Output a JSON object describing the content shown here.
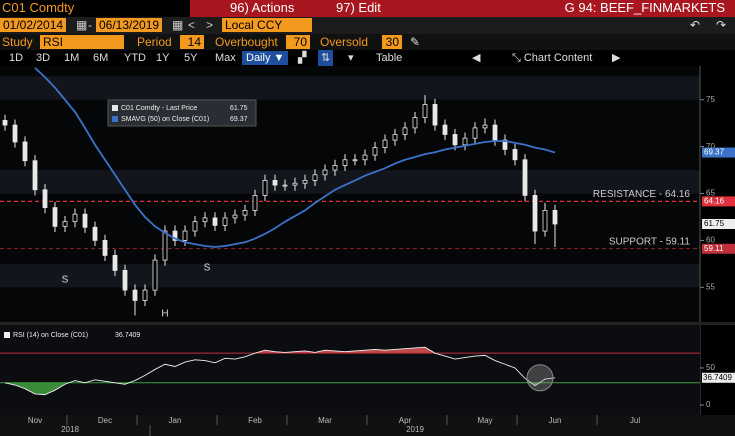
{
  "header": {
    "ticker": "C01 Comdty",
    "actions": "96) Actions",
    "edit": "97) Edit",
    "page": "G 94: BEEF_FINMARKETS"
  },
  "controls": {
    "start": "01/02/2014",
    "end": "06/13/2019",
    "currency": "Local CCY",
    "study_label": "Study",
    "study": "RSI",
    "period_label": "Period",
    "period": 14,
    "overbought_label": "Overbought",
    "overbought": 70,
    "oversold_label": "Oversold",
    "oversold": 30
  },
  "toolbar": {
    "periods": [
      "1D",
      "3D",
      "1M",
      "6M",
      "YTD",
      "1Y",
      "5Y",
      "Max"
    ],
    "frequency": "Daily",
    "table": "Table",
    "chart_content": "Chart Content"
  },
  "chart_data": [
    {
      "type": "candlestick",
      "name": "C01 Comdty - Last Price",
      "color": "#e8e8e8",
      "open": [
        72.8,
        72.3,
        70.5,
        68.5,
        65.4,
        63.5,
        61.5,
        62.0,
        62.8,
        61.4,
        60.0,
        58.4,
        56.8,
        54.7,
        53.6,
        54.7,
        57.9,
        61.0,
        60.0,
        61.0,
        62.0,
        62.4,
        61.6,
        62.4,
        62.7,
        63.2,
        64.8,
        66.4,
        65.9,
        65.9,
        66.1,
        66.4,
        67.0,
        67.5,
        68.0,
        68.6,
        68.6,
        69.1,
        69.9,
        70.7,
        71.3,
        72.0,
        73.1,
        74.5,
        72.3,
        71.3,
        70.2,
        70.9,
        72.0,
        72.3,
        70.7,
        69.7,
        68.6,
        64.8,
        61.0,
        63.2
      ],
      "high": [
        73.4,
        72.9,
        71.1,
        69.1,
        66.0,
        64.1,
        62.6,
        63.4,
        63.4,
        62.0,
        60.6,
        59.0,
        57.4,
        55.3,
        55.3,
        58.5,
        61.6,
        61.6,
        61.6,
        62.6,
        63.0,
        63.0,
        63.0,
        63.3,
        63.8,
        65.4,
        67.0,
        67.0,
        66.5,
        66.7,
        67.0,
        67.6,
        68.1,
        68.6,
        69.2,
        69.2,
        69.7,
        70.5,
        71.3,
        71.9,
        72.6,
        73.7,
        75.5,
        75.1,
        72.9,
        71.9,
        71.5,
        72.6,
        73.0,
        72.9,
        71.3,
        70.3,
        69.2,
        65.4,
        64.0,
        63.8
      ],
      "low": [
        71.7,
        69.9,
        67.9,
        64.8,
        62.9,
        60.9,
        60.9,
        61.4,
        60.8,
        59.4,
        57.8,
        56.2,
        54.1,
        52.0,
        53.0,
        54.1,
        57.3,
        59.4,
        59.4,
        60.4,
        61.4,
        61.0,
        61.0,
        61.8,
        62.1,
        62.6,
        64.2,
        65.3,
        65.3,
        65.3,
        65.5,
        65.8,
        66.4,
        66.9,
        67.4,
        68.0,
        68.0,
        68.5,
        69.3,
        70.1,
        70.7,
        71.4,
        72.5,
        71.7,
        70.7,
        69.6,
        69.6,
        70.3,
        71.4,
        70.1,
        69.1,
        68.0,
        64.2,
        59.6,
        60.4,
        59.3
      ],
      "close": [
        72.3,
        70.5,
        68.5,
        65.4,
        63.5,
        61.5,
        62.0,
        62.8,
        61.4,
        60.0,
        58.4,
        56.8,
        54.7,
        53.6,
        54.7,
        57.9,
        61.0,
        60.0,
        61.0,
        62.0,
        62.4,
        61.6,
        62.4,
        62.7,
        63.2,
        64.8,
        66.4,
        65.9,
        65.9,
        66.1,
        66.4,
        67.0,
        67.5,
        68.0,
        68.6,
        68.6,
        69.1,
        69.9,
        70.7,
        71.3,
        72.0,
        73.1,
        74.5,
        72.3,
        71.3,
        70.2,
        70.9,
        72.0,
        72.3,
        70.7,
        69.7,
        68.6,
        64.8,
        61.0,
        63.2,
        61.75
      ],
      "overlays": [
        {
          "name": "SMAVG (50)  on Close (C01)",
          "color": "#3b73c8",
          "values": [
            null,
            null,
            null,
            78.4,
            77.4,
            76.3,
            75.0,
            73.7,
            72.0,
            70.2,
            68.6,
            67.0,
            65.4,
            63.8,
            62.5,
            61.5,
            60.8,
            60.2,
            59.8,
            59.6,
            59.4,
            59.3,
            59.4,
            59.6,
            59.8,
            60.2,
            60.7,
            61.3,
            62.0,
            62.6,
            63.2,
            64.0,
            64.7,
            65.4,
            65.9,
            66.4,
            66.9,
            67.3,
            67.7,
            68.2,
            68.6,
            68.9,
            69.2,
            69.4,
            69.7,
            69.9,
            70.1,
            70.3,
            70.5,
            70.6,
            70.6,
            70.4,
            70.2,
            69.9,
            69.7,
            69.37
          ]
        }
      ],
      "levels": [
        {
          "label": "RESISTANCE - 64.16",
          "value": 64.16,
          "color": "#e0303c"
        },
        {
          "label": "SUPPORT - 59.11",
          "value": 59.11,
          "color": "#c0303a"
        }
      ],
      "annotations": [
        "S",
        "H",
        "S"
      ],
      "ylim": [
        51.3,
        78.6
      ],
      "yticks": [
        55,
        60,
        65,
        70,
        75
      ]
    },
    {
      "type": "line",
      "series": [
        {
          "name": "RSI (14)  on Close (C01)",
          "color": "#f0f0f0",
          "values": [
            30,
            27,
            22,
            15,
            14,
            20,
            28,
            33,
            30,
            34,
            32,
            30,
            28,
            33,
            40,
            48,
            55,
            52,
            58,
            61,
            60,
            57,
            63,
            62,
            65,
            70,
            74,
            72,
            71,
            72,
            73,
            71,
            74,
            73,
            72,
            73,
            74,
            75,
            74,
            75,
            76,
            77,
            78,
            70,
            66,
            62,
            64,
            66,
            67,
            60,
            55,
            50,
            36,
            26,
            35,
            36.7409,
            null,
            null,
            null,
            null,
            null,
            null,
            null,
            null
          ]
        }
      ],
      "categories": [
        null,
        null,
        null,
        "Nov",
        null,
        null,
        null,
        null,
        null,
        null,
        "Dec",
        null,
        null,
        null,
        null,
        null,
        null,
        "Jan",
        null,
        null,
        null,
        null,
        null,
        null,
        null,
        "Feb",
        null,
        null,
        null,
        null,
        null,
        null,
        "Mar",
        null,
        null,
        null,
        null,
        null,
        null,
        null,
        "Apr",
        null,
        null,
        null,
        null,
        null,
        null,
        null,
        "May",
        null,
        null,
        null,
        null,
        null,
        null,
        "Jun",
        null,
        null,
        null,
        null,
        null,
        null,
        null,
        "Jul"
      ],
      "x_groups": [
        "2018",
        "2019"
      ],
      "ylim": [
        -13.5,
        108
      ],
      "yticks": [
        0,
        50
      ]
    }
  ]
}
